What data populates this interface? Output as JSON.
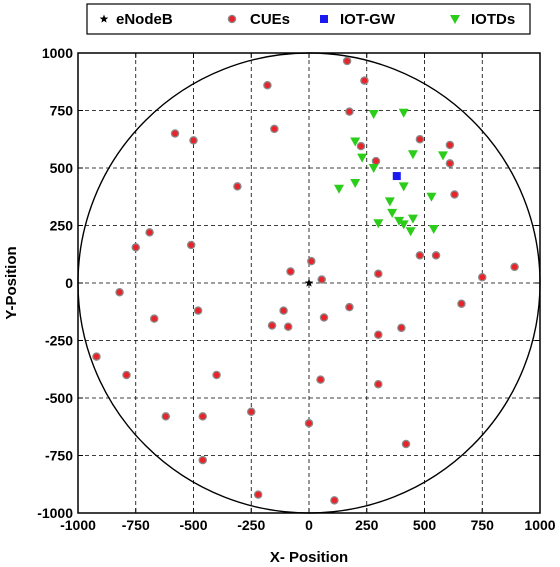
{
  "chart_data": {
    "type": "scatter",
    "title": "",
    "xlabel": "X- Position",
    "ylabel": "Y-Position",
    "xlim": [
      -1000,
      1000
    ],
    "ylim": [
      -1000,
      1000
    ],
    "xticks": [
      -1000,
      -750,
      -500,
      -250,
      0,
      250,
      500,
      750,
      1000
    ],
    "yticks": [
      -1000,
      -750,
      -500,
      -250,
      0,
      250,
      500,
      750,
      1000
    ],
    "grid": true,
    "grid_style": "dashed",
    "cell_boundary": {
      "shape": "circle",
      "center": [
        0,
        0
      ],
      "radius": 1000
    },
    "legend_position": "top",
    "series": [
      {
        "name": "eNodeB",
        "marker": "star",
        "color": "#000000",
        "points": [
          [
            0,
            0
          ]
        ]
      },
      {
        "name": "CUEs",
        "marker": "circle",
        "color": "#e8232a",
        "edge_color": "#8a8a8a",
        "points": [
          [
            165,
            965
          ],
          [
            240,
            880
          ],
          [
            -180,
            860
          ],
          [
            -150,
            670
          ],
          [
            -580,
            650
          ],
          [
            -500,
            620
          ],
          [
            -310,
            420
          ],
          [
            -750,
            155
          ],
          [
            -690,
            220
          ],
          [
            -510,
            165
          ],
          [
            -820,
            -40
          ],
          [
            -670,
            -155
          ],
          [
            -480,
            -120
          ],
          [
            -920,
            -320
          ],
          [
            -790,
            -400
          ],
          [
            -400,
            -400
          ],
          [
            -620,
            -580
          ],
          [
            -460,
            -580
          ],
          [
            -460,
            -770
          ],
          [
            -250,
            -560
          ],
          [
            -220,
            -920
          ],
          [
            0,
            -610
          ],
          [
            110,
            -945
          ],
          [
            50,
            -420
          ],
          [
            -80,
            50
          ],
          [
            10,
            95
          ],
          [
            55,
            15
          ],
          [
            -110,
            -120
          ],
          [
            -160,
            -185
          ],
          [
            -90,
            -190
          ],
          [
            65,
            -150
          ],
          [
            175,
            745
          ],
          [
            225,
            595
          ],
          [
            290,
            530
          ],
          [
            480,
            625
          ],
          [
            610,
            600
          ],
          [
            610,
            520
          ],
          [
            630,
            385
          ],
          [
            175,
            -105
          ],
          [
            300,
            40
          ],
          [
            300,
            -225
          ],
          [
            300,
            -440
          ],
          [
            400,
            -195
          ],
          [
            420,
            -700
          ],
          [
            480,
            120
          ],
          [
            550,
            120
          ],
          [
            660,
            -90
          ],
          [
            750,
            25
          ],
          [
            890,
            70
          ]
        ]
      },
      {
        "name": "IOT-GW",
        "marker": "square",
        "color": "#1a1af0",
        "points": [
          [
            380,
            465
          ]
        ]
      },
      {
        "name": "IOTDs",
        "marker": "triangle-down",
        "color": "#2ccc1a",
        "points": [
          [
            280,
            735
          ],
          [
            410,
            740
          ],
          [
            200,
            615
          ],
          [
            230,
            545
          ],
          [
            280,
            500
          ],
          [
            450,
            560
          ],
          [
            580,
            555
          ],
          [
            130,
            410
          ],
          [
            200,
            435
          ],
          [
            410,
            420
          ],
          [
            350,
            355
          ],
          [
            530,
            375
          ],
          [
            360,
            305
          ],
          [
            300,
            260
          ],
          [
            390,
            270
          ],
          [
            410,
            255
          ],
          [
            440,
            225
          ],
          [
            450,
            280
          ],
          [
            540,
            235
          ]
        ]
      }
    ]
  }
}
